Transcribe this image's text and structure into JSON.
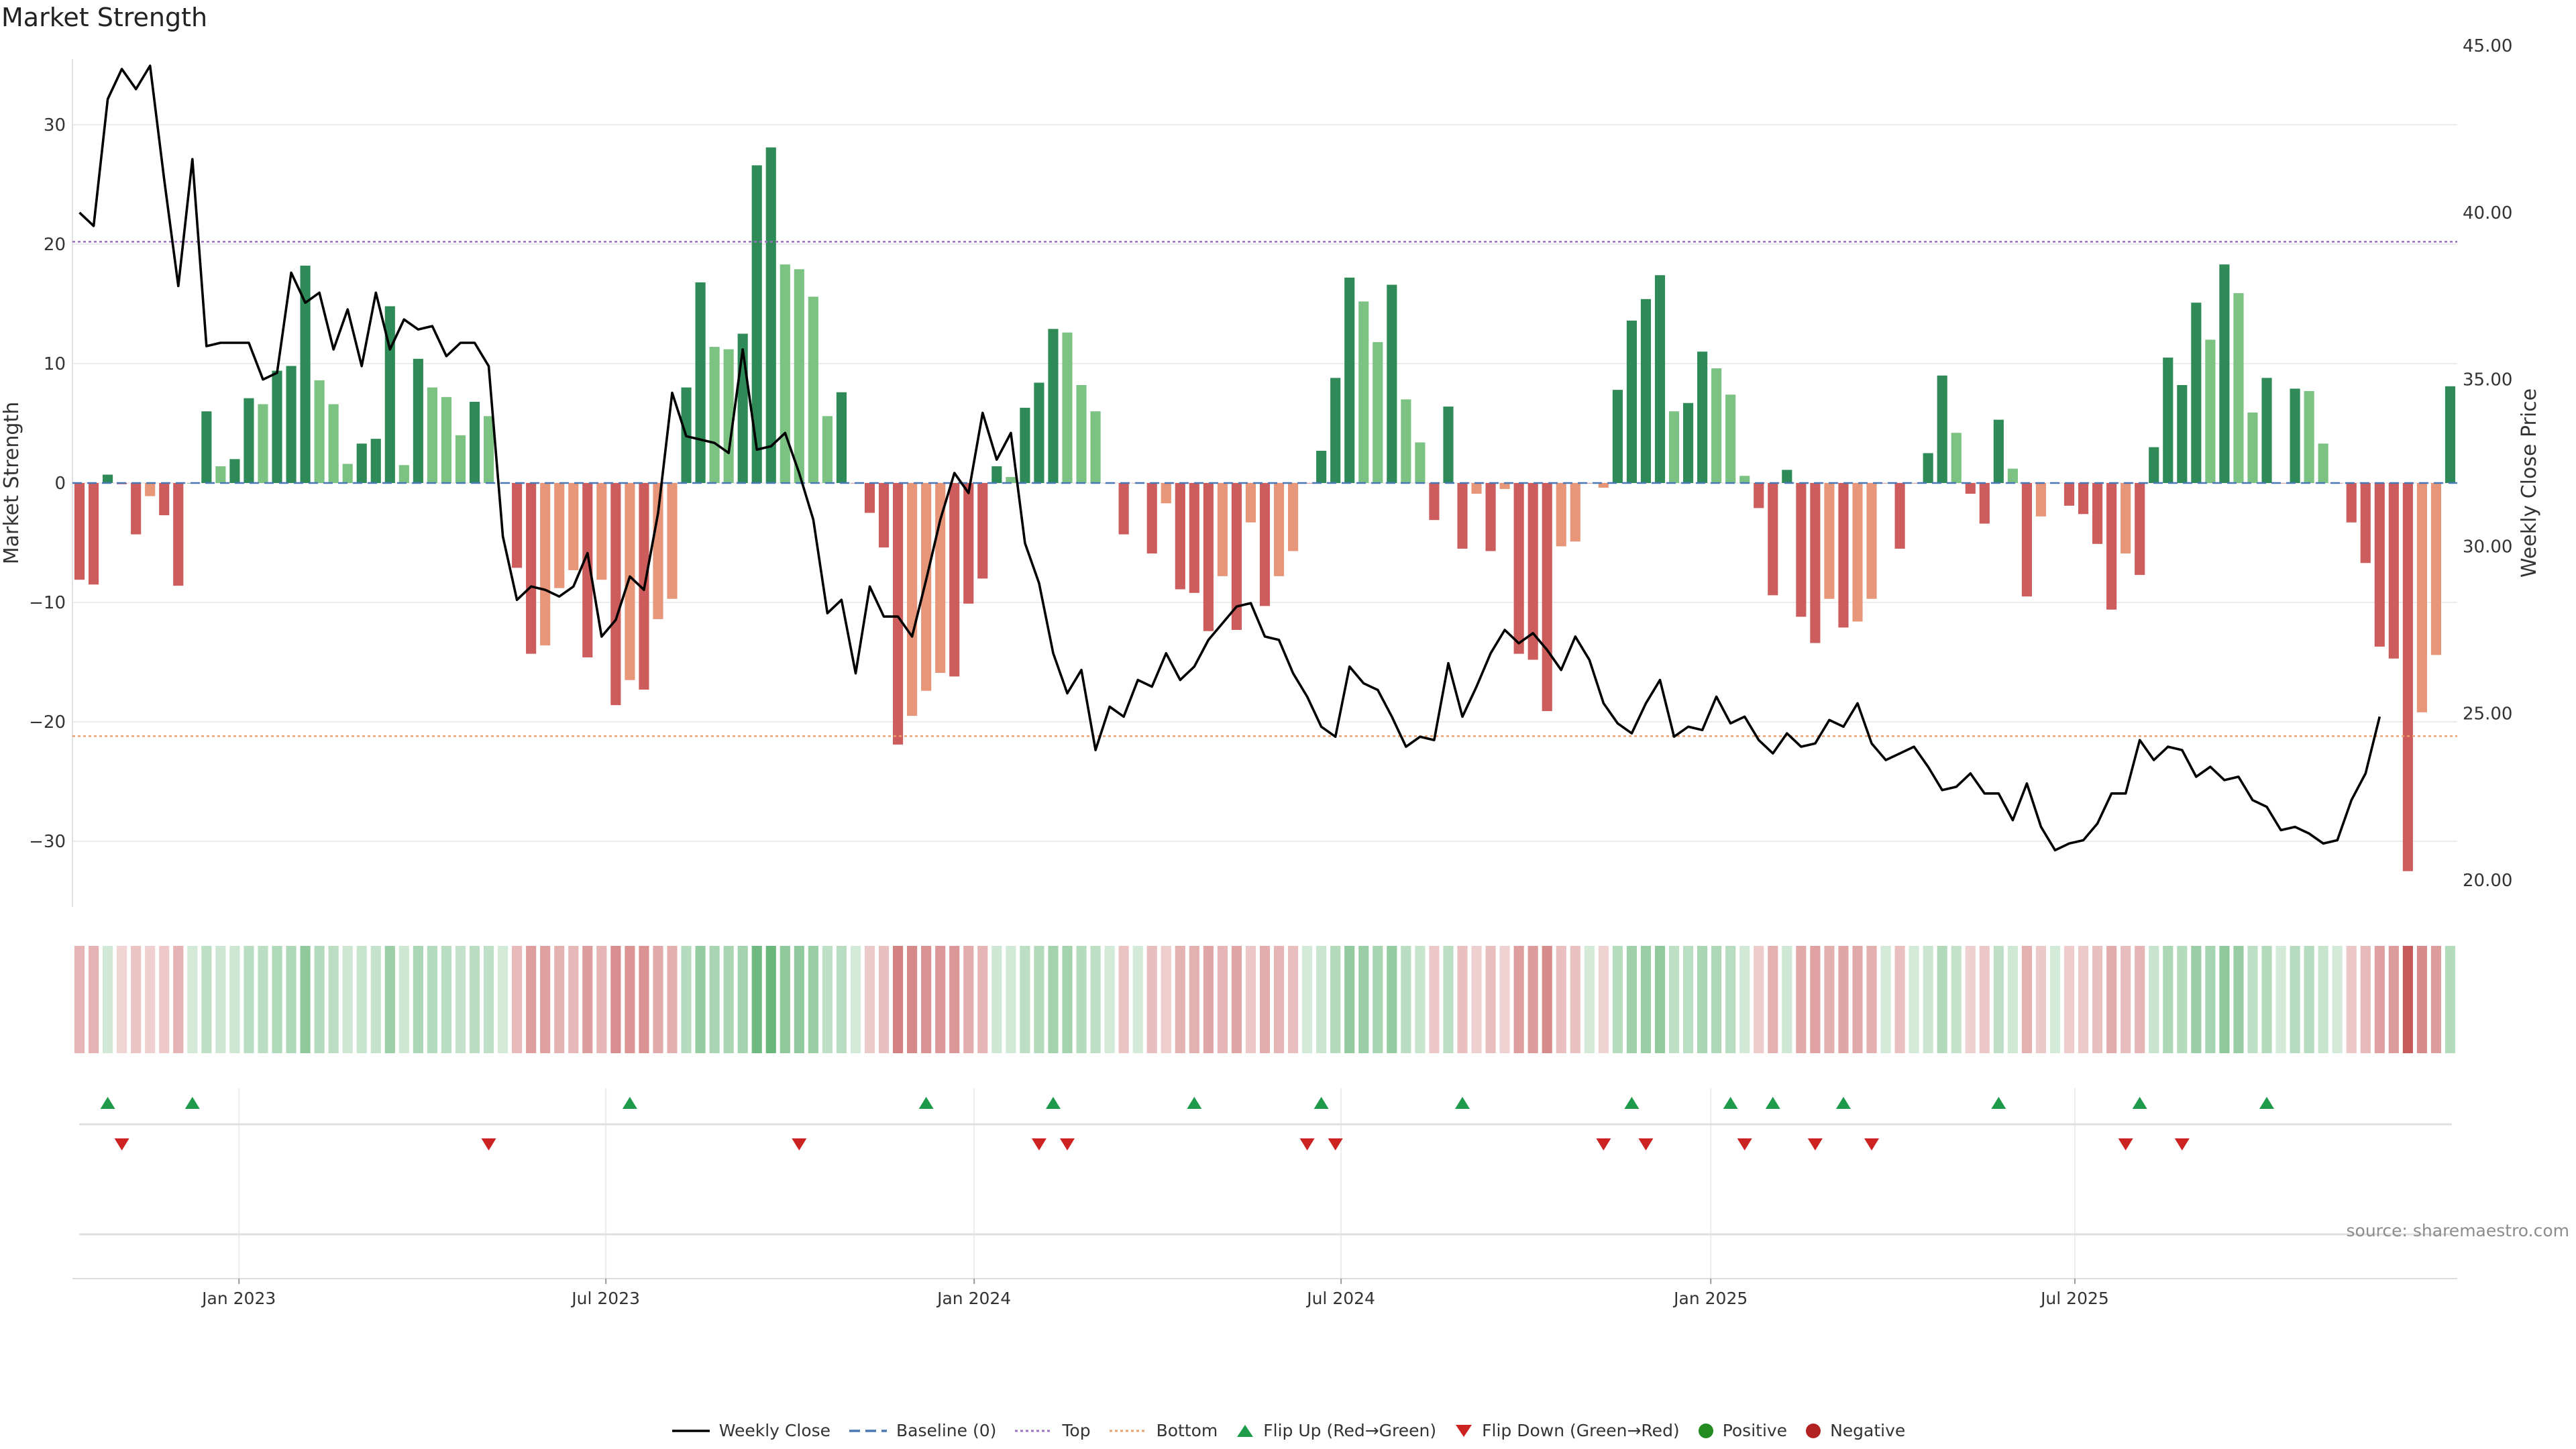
{
  "title": "Market Strength",
  "source": "source: sharemaestro.com",
  "colors": {
    "strongPos": "#2e8b57",
    "weakPos": "#7cc283",
    "strongNeg": "#cd5c5c",
    "weakNeg": "#e8967a",
    "price": "#000000",
    "baseline": "#4a78b5",
    "top": "#9a6fbf",
    "bottom": "#e8a070",
    "flipUp": "#1e9a4a",
    "flipDown": "#cc2222",
    "positive": "#228b22",
    "negative": "#b22222"
  },
  "chart_data": {
    "type": "bar+line",
    "title": "Market Strength",
    "ylabel": "Market Strength",
    "y2label": "Weekly Close Price",
    "ylim": [
      -35.5,
      35.5
    ],
    "y2lim": [
      19.2,
      44.6
    ],
    "yticks": [
      30,
      20,
      10,
      0,
      -10,
      -20,
      -30
    ],
    "yticklabels": [
      "30",
      "20",
      "10",
      "0",
      "−10",
      "−20",
      "−30"
    ],
    "y2ticks": [
      45,
      40,
      35,
      30,
      25,
      20
    ],
    "y2ticklabels": [
      "45.00",
      "40.00",
      "35.00",
      "30.00",
      "25.00",
      "20.00"
    ],
    "top_line": 20.2,
    "bottom_line": -21.2,
    "start_date": "2022-10-17",
    "xticks": [
      {
        "label": "Jan 2023",
        "week": 11.3
      },
      {
        "label": "Jul 2023",
        "week": 37.3
      },
      {
        "label": "Jan 2024",
        "week": 63.4
      },
      {
        "label": "Jul 2024",
        "week": 89.4
      },
      {
        "label": "Jan 2025",
        "week": 115.6
      },
      {
        "label": "Jul 2025",
        "week": 141.4
      }
    ],
    "strength": [
      -8.1,
      -8.5,
      0.7,
      -0.1,
      -4.3,
      -1.1,
      -2.7,
      -8.6,
      0.0,
      6.0,
      1.4,
      2.0,
      7.1,
      6.6,
      9.4,
      9.8,
      18.2,
      8.6,
      6.6,
      1.6,
      3.3,
      3.7,
      14.8,
      1.5,
      10.4,
      8.0,
      7.2,
      4.0,
      6.8,
      5.6,
      0.0,
      -7.1,
      -14.3,
      -13.6,
      -8.8,
      -7.3,
      -14.6,
      -8.1,
      -18.6,
      -16.5,
      -17.3,
      -11.4,
      -9.7,
      8.0,
      16.8,
      11.4,
      11.2,
      12.5,
      26.6,
      28.1,
      18.3,
      17.9,
      15.6,
      5.6,
      7.6,
      0.0,
      -2.5,
      -5.4,
      -21.9,
      -19.5,
      -17.4,
      -15.9,
      -16.2,
      -10.1,
      -8.0,
      1.4,
      0.5,
      6.3,
      8.4,
      12.9,
      12.6,
      8.2,
      6.0,
      0.0,
      -4.3,
      0.0,
      -5.9,
      -1.7,
      -8.9,
      -9.2,
      -12.4,
      -7.8,
      -12.3,
      -3.3,
      -10.3,
      -7.8,
      -5.7,
      0.0,
      2.7,
      8.8,
      17.2,
      15.2,
      11.8,
      16.6,
      7.0,
      3.4,
      -3.1,
      6.4,
      -5.5,
      -0.9,
      -5.7,
      -0.5,
      -14.3,
      -14.8,
      -19.1,
      -5.3,
      -4.9,
      0.0,
      -0.4,
      7.8,
      13.6,
      15.4,
      17.4,
      6.0,
      6.7,
      11.0,
      9.6,
      7.4,
      0.6,
      -2.1,
      -9.4,
      1.1,
      -11.2,
      -13.4,
      -9.7,
      -12.1,
      -11.6,
      -9.7,
      0.0,
      -5.5,
      0.0,
      2.5,
      9.0,
      4.2,
      -0.9,
      -3.4,
      5.3,
      1.2,
      -9.5,
      -2.8,
      0.0,
      -1.9,
      -2.6,
      -5.1,
      -10.6,
      -5.9,
      -7.7,
      3.0,
      10.5,
      8.2,
      15.1,
      12.0,
      18.3,
      15.9,
      5.9,
      8.8,
      0.0,
      7.9,
      7.7,
      3.3,
      0.0,
      -3.3,
      -6.7,
      -13.7,
      -14.7,
      -32.5,
      -19.2,
      -14.4,
      8.1
    ],
    "strength_colors": [
      "sn",
      "sn",
      "sp",
      "sn",
      "sn",
      "wn",
      "sn",
      "sn",
      "sp",
      "sp",
      "wp",
      "sp",
      "sp",
      "wp",
      "sp",
      "sp",
      "sp",
      "wp",
      "wp",
      "wp",
      "sp",
      "sp",
      "sp",
      "wp",
      "sp",
      "wp",
      "wp",
      "wp",
      "sp",
      "wp",
      "sp",
      "sn",
      "sn",
      "wn",
      "wn",
      "wn",
      "sn",
      "wn",
      "sn",
      "wn",
      "sn",
      "wn",
      "wn",
      "sp",
      "sp",
      "wp",
      "wp",
      "sp",
      "sp",
      "sp",
      "wp",
      "wp",
      "wp",
      "wp",
      "sp",
      "sn",
      "sn",
      "sn",
      "sn",
      "wn",
      "wn",
      "wn",
      "sn",
      "sn",
      "sn",
      "sp",
      "wp",
      "sp",
      "sp",
      "sp",
      "wp",
      "wp",
      "wp",
      "sn",
      "sn",
      "wn",
      "sn",
      "wn",
      "sn",
      "sn",
      "sn",
      "wn",
      "sn",
      "wn",
      "sn",
      "wn",
      "wn",
      "sn",
      "sp",
      "sp",
      "sp",
      "wp",
      "wp",
      "sp",
      "wp",
      "wp",
      "sn",
      "sp",
      "sn",
      "wn",
      "sn",
      "wn",
      "sn",
      "sn",
      "sn",
      "wn",
      "wn",
      "sn",
      "wn",
      "sp",
      "sp",
      "sp",
      "sp",
      "wp",
      "sp",
      "sp",
      "wp",
      "wp",
      "wp",
      "sn",
      "sn",
      "sp",
      "sn",
      "sn",
      "wn",
      "sn",
      "wn",
      "wn",
      "sn",
      "sn",
      "sn",
      "sp",
      "sp",
      "wp",
      "sn",
      "sn",
      "sp",
      "wp",
      "sn",
      "wn",
      "sn",
      "sn",
      "sn",
      "sn",
      "sn",
      "wn",
      "sn",
      "sp",
      "sp",
      "sp",
      "sp",
      "wp",
      "sp",
      "wp",
      "wp",
      "sp",
      "sn",
      "sp",
      "wp",
      "wp",
      "sn",
      "sn",
      "sn",
      "sn",
      "sn",
      "sn",
      "wn",
      "wn",
      "sp"
    ],
    "price": [
      40.0,
      39.6,
      43.4,
      44.3,
      43.7,
      44.4,
      41.0,
      37.8,
      41.6,
      36.0,
      36.1,
      36.1,
      36.1,
      35.0,
      35.2,
      38.2,
      37.3,
      37.6,
      35.9,
      37.1,
      35.4,
      37.6,
      35.9,
      36.8,
      36.5,
      36.6,
      35.7,
      36.1,
      36.1,
      35.4,
      30.3,
      28.4,
      28.8,
      28.7,
      28.5,
      28.8,
      29.8,
      27.3,
      27.8,
      29.1,
      28.7,
      31.0,
      34.6,
      33.3,
      33.2,
      33.1,
      32.8,
      35.9,
      32.9,
      33.0,
      33.4,
      32.2,
      30.8,
      28.0,
      28.4,
      26.2,
      28.8,
      27.9,
      27.9,
      27.3,
      29.0,
      30.8,
      32.2,
      31.6,
      34.0,
      32.6,
      33.4,
      30.1,
      28.9,
      26.8,
      25.6,
      26.3,
      23.9,
      25.2,
      24.9,
      26.0,
      25.8,
      26.8,
      26.0,
      26.4,
      27.2,
      27.7,
      28.2,
      28.3,
      27.3,
      27.2,
      26.2,
      25.5,
      24.6,
      24.3,
      26.4,
      25.9,
      25.7,
      24.9,
      24.0,
      24.3,
      24.2,
      26.5,
      24.9,
      25.8,
      26.8,
      27.5,
      27.1,
      27.4,
      26.9,
      26.3,
      27.3,
      26.6,
      25.3,
      24.7,
      24.4,
      25.3,
      26.0,
      24.3,
      24.6,
      24.5,
      25.5,
      24.7,
      24.9,
      24.2,
      23.8,
      24.4,
      24.0,
      24.1,
      24.8,
      24.6,
      25.3,
      24.1,
      23.6,
      23.8,
      24.0,
      23.4,
      22.7,
      22.8,
      23.2,
      22.6,
      22.6,
      21.8,
      22.9,
      21.6,
      20.9,
      21.1,
      21.2,
      21.7,
      22.6,
      22.6,
      24.2,
      23.6,
      24.0,
      23.9,
      23.1,
      23.4,
      23.0,
      23.1,
      22.4,
      22.2,
      21.5,
      21.6,
      21.4,
      21.1,
      21.2,
      22.4,
      23.2,
      24.9
    ],
    "flips_up": [
      2,
      8,
      39,
      60,
      69,
      79,
      88,
      98,
      110,
      117,
      120,
      125,
      136,
      146,
      155
    ],
    "flips_down": [
      3,
      29,
      51,
      68,
      70,
      87,
      89,
      108,
      111,
      118,
      123,
      127,
      145,
      149
    ],
    "legend": [
      "Weekly Close",
      "Baseline (0)",
      "Top",
      "Bottom",
      "Flip Up (Red→Green)",
      "Flip Down (Green→Red)",
      "Positive",
      "Negative"
    ]
  }
}
